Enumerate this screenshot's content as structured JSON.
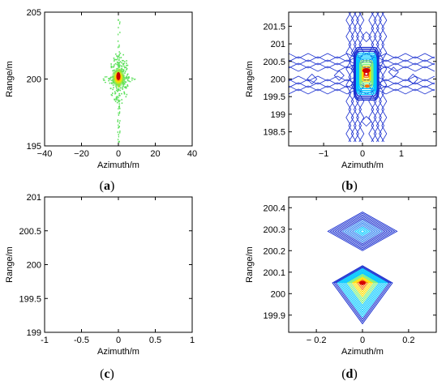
{
  "chart_data": [
    {
      "panel": "a",
      "type": "heatmap",
      "xlabel": "Azimuth/m",
      "ylabel": "Range/m",
      "xlim": [
        -40,
        40
      ],
      "ylim": [
        195,
        205
      ],
      "xticks": [
        -40,
        -20,
        0,
        20,
        40
      ],
      "yticks": [
        195,
        200,
        205
      ],
      "xtick_labels": [
        "−40",
        "−20",
        "0",
        "20",
        "40"
      ],
      "ytick_labels": [
        "195",
        "200",
        "205"
      ],
      "peak": {
        "x": 0,
        "y": 200.1
      },
      "grid": false
    },
    {
      "panel": "b",
      "type": "contour",
      "xlabel": "Azimuth/m",
      "ylabel": "Range/m",
      "xlim": [
        -1.9,
        1.9
      ],
      "ylim": [
        198.1,
        201.9
      ],
      "xticks": [
        -1,
        0,
        1
      ],
      "yticks": [
        198.5,
        199,
        199.5,
        200,
        200.5,
        201,
        201.5
      ],
      "xtick_labels": [
        "−1",
        "0",
        "1"
      ],
      "ytick_labels": [
        "198.5",
        "199",
        "199.5",
        "200",
        "200.5",
        "201",
        "201.5"
      ],
      "peak": {
        "x": 0.1,
        "y": 200.15
      },
      "grid": false
    },
    {
      "panel": "c",
      "type": "scatter",
      "xlabel": "Azimuth/m",
      "ylabel": "Range/m",
      "xlim": [
        -1,
        1
      ],
      "ylim": [
        199,
        201
      ],
      "xticks": [
        -1,
        -0.5,
        0,
        0.5,
        1
      ],
      "yticks": [
        199,
        199.5,
        200,
        200.5,
        201
      ],
      "xtick_labels": [
        "-1",
        "-0.5",
        "0",
        "0.5",
        "1"
      ],
      "ytick_labels": [
        "199",
        "199.5",
        "200",
        "200.5",
        "201"
      ],
      "grid": false
    },
    {
      "panel": "d",
      "type": "contour",
      "xlabel": "Azimuth/m",
      "ylabel": "Range/m",
      "xlim": [
        -0.32,
        0.32
      ],
      "ylim": [
        199.82,
        200.45
      ],
      "xticks": [
        -0.2,
        0,
        0.2
      ],
      "yticks": [
        199.9,
        200,
        200.1,
        200.2,
        200.3,
        200.4
      ],
      "xtick_labels": [
        "− 0.2",
        "0",
        "0.2"
      ],
      "ytick_labels": [
        "199.9",
        "200",
        "200.1",
        "200.2",
        "200.3",
        "200.4"
      ],
      "peaks": [
        {
          "x": 0,
          "y": 200.29
        },
        {
          "x": 0,
          "y": 200.05
        }
      ],
      "grid": false
    }
  ],
  "labels": [
    {
      "open": "(",
      "letter": "a",
      "close": ")"
    },
    {
      "open": "(",
      "letter": "b",
      "close": ")"
    },
    {
      "open": "(",
      "letter": "c",
      "close": ")"
    },
    {
      "open": "(",
      "letter": "d",
      "close": ")"
    }
  ],
  "colors": {
    "contour_outer": "#1a2fd0",
    "contour_mid": "#00c8ff",
    "contour_inner": "#ffe000",
    "contour_peak": "#d40000",
    "axes": "#000000",
    "scatter_green": "#3cdc3c"
  }
}
